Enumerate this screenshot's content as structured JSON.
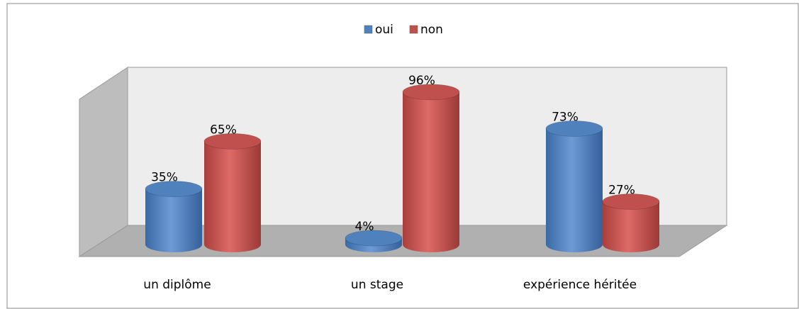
{
  "chart_data": {
    "type": "bar3d",
    "categories": [
      "un diplôme",
      "un stage",
      "expérience héritée"
    ],
    "series": [
      {
        "name": "oui",
        "color": "#4f81bd",
        "values": [
          35,
          4,
          73
        ],
        "value_labels": [
          "35%",
          "4%",
          "73%"
        ]
      },
      {
        "name": "non",
        "color": "#c0504d",
        "values": [
          65,
          96,
          27
        ],
        "value_labels": [
          "65%",
          "96%",
          "27%"
        ]
      }
    ],
    "legend": "top"
  }
}
